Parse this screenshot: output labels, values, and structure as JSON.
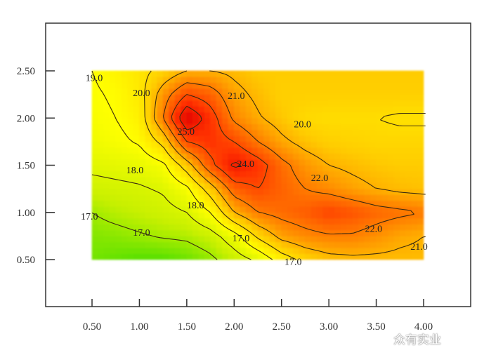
{
  "chart_data": {
    "type": "heatmap",
    "subtype": "filled-contour",
    "title": "",
    "xlabel": "",
    "ylabel": "",
    "xlim": [
      0.5,
      4.0
    ],
    "ylim": [
      0.5,
      2.5
    ],
    "xticks": [
      "0.50",
      "1.00",
      "1.50",
      "2.00",
      "2.50",
      "3.00",
      "3.50",
      "4.00"
    ],
    "yticks": [
      "0.50",
      "1.00",
      "1.50",
      "2.00",
      "2.50"
    ],
    "grid": false,
    "x": [
      0.5,
      0.75,
      1.0,
      1.25,
      1.5,
      1.75,
      2.0,
      2.25,
      2.5,
      2.75,
      3.0,
      3.25,
      3.5,
      3.75,
      4.0
    ],
    "y": [
      2.5,
      2.25,
      2.0,
      1.75,
      1.5,
      1.25,
      1.0,
      0.75,
      0.5
    ],
    "z": [
      [
        19.0,
        19.3,
        19.7,
        20.3,
        21.0,
        21.0,
        20.8,
        20.5,
        20.5,
        20.5,
        20.5,
        20.5,
        20.5,
        20.5,
        20.5
      ],
      [
        18.9,
        19.1,
        19.6,
        21.5,
        23.0,
        22.5,
        21.3,
        20.8,
        20.4,
        20.4,
        20.4,
        20.4,
        20.4,
        20.4,
        20.4
      ],
      [
        18.8,
        19.0,
        19.4,
        22.0,
        25.0,
        23.5,
        21.8,
        21.1,
        20.6,
        20.1,
        20.0,
        20.0,
        20.0,
        19.9,
        19.9
      ],
      [
        18.6,
        18.8,
        19.1,
        20.3,
        23.0,
        23.5,
        23.0,
        22.0,
        21.2,
        20.7,
        20.4,
        20.3,
        20.2,
        20.2,
        20.2
      ],
      [
        18.2,
        18.3,
        18.4,
        18.8,
        20.5,
        22.7,
        24.2,
        23.5,
        22.3,
        21.5,
        21.0,
        20.8,
        20.6,
        20.5,
        20.5
      ],
      [
        17.7,
        17.8,
        17.9,
        18.1,
        18.8,
        20.5,
        22.5,
        23.0,
        22.5,
        22.0,
        21.7,
        21.3,
        21.0,
        20.8,
        20.7
      ],
      [
        17.0,
        17.3,
        17.5,
        17.7,
        18.0,
        19.0,
        21.0,
        22.0,
        22.3,
        22.6,
        23.1,
        22.8,
        22.4,
        22.2,
        22.0
      ],
      [
        16.6,
        16.7,
        16.9,
        17.1,
        17.2,
        17.6,
        18.6,
        20.2,
        21.3,
        21.7,
        21.9,
        21.9,
        21.6,
        21.2,
        21.0
      ],
      [
        16.4,
        16.2,
        16.0,
        16.0,
        16.3,
        16.8,
        17.5,
        18.2,
        19.5,
        20.3,
        20.7,
        20.8,
        20.8,
        20.8,
        20.8
      ]
    ],
    "contour_levels": [
      17,
      18,
      19,
      20,
      21,
      22,
      23,
      24,
      25
    ],
    "colormap": [
      {
        "v": 16.0,
        "color": "#55e000"
      },
      {
        "v": 17.5,
        "color": "#c8f000"
      },
      {
        "v": 19.0,
        "color": "#ffff00"
      },
      {
        "v": 20.5,
        "color": "#ffcc00"
      },
      {
        "v": 22.0,
        "color": "#ff7a00"
      },
      {
        "v": 23.5,
        "color": "#ff3000"
      },
      {
        "v": 25.0,
        "color": "#e00000"
      }
    ],
    "contour_labels": [
      {
        "text": "19.0",
        "x": 0.55,
        "y": 2.43
      },
      {
        "text": "20.0",
        "x": 1.05,
        "y": 2.27
      },
      {
        "text": "21.0",
        "x": 2.05,
        "y": 2.24
      },
      {
        "text": "25.0",
        "x": 1.52,
        "y": 1.86
      },
      {
        "text": "20.0",
        "x": 2.75,
        "y": 1.94
      },
      {
        "text": "18.0",
        "x": 0.98,
        "y": 1.45
      },
      {
        "text": "24.0",
        "x": 2.15,
        "y": 1.52
      },
      {
        "text": "22.0",
        "x": 2.93,
        "y": 1.37
      },
      {
        "text": "18.0",
        "x": 1.62,
        "y": 1.08
      },
      {
        "text": "17.0",
        "x": 0.5,
        "y": 0.96
      },
      {
        "text": "17.0",
        "x": 1.05,
        "y": 0.79
      },
      {
        "text": "22.0",
        "x": 3.5,
        "y": 0.83
      },
      {
        "text": "17.0",
        "x": 2.1,
        "y": 0.73
      },
      {
        "text": "21.0",
        "x": 3.98,
        "y": 0.64
      },
      {
        "text": "17.0",
        "x": 2.65,
        "y": 0.48
      }
    ]
  },
  "watermark": "众有实业"
}
